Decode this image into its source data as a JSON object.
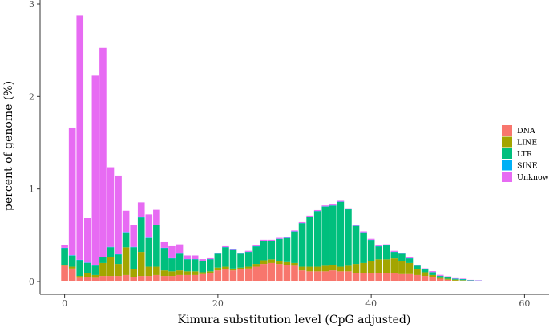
{
  "chart_data": {
    "type": "bar",
    "stacked": true,
    "xlabel": "Kimura substitution level (CpG adjusted)",
    "ylabel": "percent of genome (%)",
    "xlim": [
      -3.2,
      63.2
    ],
    "ylim": [
      0,
      3
    ],
    "xticks": [
      0,
      20,
      40,
      60
    ],
    "yticks": [
      0,
      1,
      2,
      3
    ],
    "grid": false,
    "legend_position": "right",
    "x": [
      0,
      1,
      2,
      3,
      4,
      5,
      6,
      7,
      8,
      9,
      10,
      11,
      12,
      13,
      14,
      15,
      16,
      17,
      18,
      19,
      20,
      21,
      22,
      23,
      24,
      25,
      26,
      27,
      28,
      29,
      30,
      31,
      32,
      33,
      34,
      35,
      36,
      37,
      38,
      39,
      40,
      41,
      42,
      43,
      44,
      45,
      46,
      47,
      48,
      49,
      50,
      51,
      52,
      53,
      54
    ],
    "series": [
      {
        "name": "DNA",
        "color": "#F8766D",
        "values": [
          0.17,
          0.14,
          0.04,
          0.05,
          0.04,
          0.06,
          0.06,
          0.06,
          0.07,
          0.05,
          0.06,
          0.06,
          0.07,
          0.06,
          0.06,
          0.07,
          0.07,
          0.07,
          0.08,
          0.09,
          0.12,
          0.13,
          0.12,
          0.13,
          0.14,
          0.16,
          0.19,
          0.2,
          0.19,
          0.18,
          0.17,
          0.12,
          0.11,
          0.11,
          0.11,
          0.12,
          0.11,
          0.11,
          0.09,
          0.09,
          0.09,
          0.09,
          0.09,
          0.09,
          0.08,
          0.08,
          0.07,
          0.06,
          0.05,
          0.03,
          0.02,
          0.01,
          0.01,
          0.005,
          0.005
        ]
      },
      {
        "name": "LINE",
        "color": "#A3A500",
        "values": [
          0.01,
          0.02,
          0.02,
          0.04,
          0.03,
          0.14,
          0.2,
          0.13,
          0.3,
          0.08,
          0.26,
          0.1,
          0.09,
          0.06,
          0.05,
          0.05,
          0.04,
          0.04,
          0.02,
          0.02,
          0.03,
          0.03,
          0.02,
          0.02,
          0.02,
          0.03,
          0.04,
          0.04,
          0.03,
          0.03,
          0.03,
          0.04,
          0.05,
          0.05,
          0.06,
          0.06,
          0.05,
          0.06,
          0.1,
          0.11,
          0.13,
          0.15,
          0.15,
          0.16,
          0.14,
          0.12,
          0.06,
          0.04,
          0.02,
          0.01,
          0.01,
          0.01,
          0.005,
          0.005,
          0.002
        ]
      },
      {
        "name": "LTR",
        "color": "#00BF7D",
        "values": [
          0.18,
          0.12,
          0.17,
          0.11,
          0.1,
          0.06,
          0.11,
          0.1,
          0.16,
          0.24,
          0.37,
          0.31,
          0.45,
          0.24,
          0.14,
          0.18,
          0.13,
          0.13,
          0.12,
          0.13,
          0.15,
          0.21,
          0.2,
          0.15,
          0.16,
          0.19,
          0.21,
          0.2,
          0.24,
          0.26,
          0.34,
          0.47,
          0.54,
          0.6,
          0.64,
          0.64,
          0.7,
          0.61,
          0.41,
          0.33,
          0.23,
          0.14,
          0.15,
          0.07,
          0.08,
          0.05,
          0.04,
          0.03,
          0.03,
          0.02,
          0.02,
          0.01,
          0.01,
          0.005,
          0.004
        ]
      },
      {
        "name": "SINE",
        "color": "#00B0F6",
        "values": [
          0.005,
          0.005,
          0.005,
          0.005,
          0.005,
          0.005,
          0.005,
          0.005,
          0.005,
          0.005,
          0.005,
          0.005,
          0.005,
          0.005,
          0.002,
          0.002,
          0.002,
          0.002,
          0.002,
          0.002,
          0.002,
          0.002,
          0.002,
          0.002,
          0.002,
          0.002,
          0.002,
          0.002,
          0.002,
          0.002,
          0.002,
          0.002,
          0.002,
          0.002,
          0.002,
          0.002,
          0.002,
          0.002,
          0.002,
          0.002,
          0.002,
          0.002,
          0.002,
          0.002,
          0.002,
          0.002,
          0.002,
          0.002,
          0.002,
          0.002,
          0.001,
          0.001,
          0.001,
          0.001,
          0.001
        ]
      },
      {
        "name": "Unknown",
        "color": "#E76BF3",
        "values": [
          0.03,
          1.38,
          2.64,
          0.48,
          2.05,
          2.26,
          0.86,
          0.85,
          0.23,
          0.24,
          0.16,
          0.25,
          0.16,
          0.06,
          0.13,
          0.1,
          0.04,
          0.04,
          0.02,
          0.01,
          0.01,
          0.01,
          0.01,
          0.01,
          0.01,
          0.01,
          0.01,
          0.01,
          0.01,
          0.01,
          0.01,
          0.01,
          0.01,
          0.01,
          0.01,
          0.01,
          0.01,
          0.01,
          0.01,
          0.01,
          0.01,
          0.01,
          0.01,
          0.01,
          0.01,
          0.01,
          0.01,
          0.01,
          0.01,
          0.01,
          0.005,
          0.005,
          0.005,
          0.002,
          0.002
        ]
      }
    ]
  }
}
